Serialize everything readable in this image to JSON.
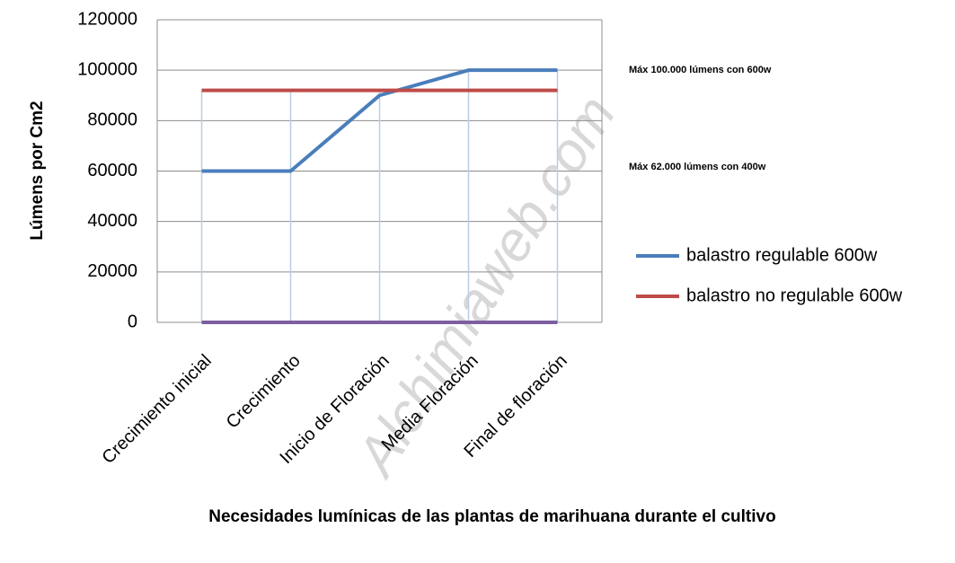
{
  "chart_data": {
    "type": "line",
    "title": "Necesidades lumínicas de las plantas de marihuana durante el cultivo",
    "y_label": "Lúmens por Cm2",
    "categories": [
      "Crecimiento inicial",
      "Crecimiento",
      "Inicio de Floración",
      "Media Floración",
      "Final de floración"
    ],
    "series": [
      {
        "name": "balastro regulable 600w",
        "color": "#4a7ebb",
        "values": [
          60000,
          60000,
          90000,
          100000,
          100000
        ]
      },
      {
        "name": "balastro no regulable 600w",
        "color": "#be4b48",
        "values": [
          92000,
          92000,
          92000,
          92000,
          92000
        ]
      },
      {
        "color": "#7d5fa0",
        "values": [
          0,
          0,
          0,
          0,
          0
        ]
      }
    ],
    "ylim": [
      0,
      120000
    ],
    "yticks": [
      0,
      20000,
      40000,
      60000,
      80000,
      100000,
      120000
    ],
    "grid": true,
    "legend": "right",
    "annotations": [
      "Máx 100.000 lúmens con 600w",
      "Máx 62.000 lúmens con 400w"
    ],
    "watermark": "Alchimiaweb.com"
  }
}
